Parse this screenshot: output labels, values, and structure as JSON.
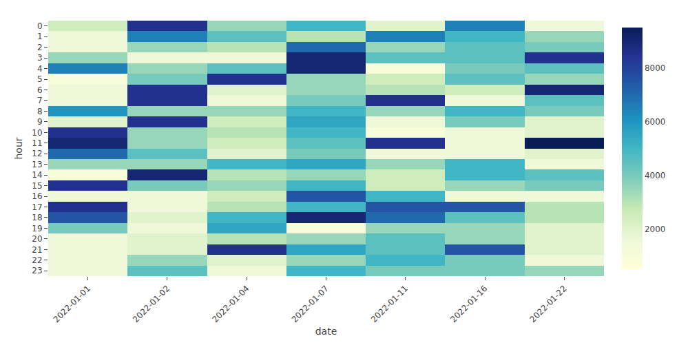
{
  "chart_data": {
    "type": "heatmap",
    "xlabel": "date",
    "ylabel": "hour",
    "x": [
      "2022-01-01",
      "2022-01-02",
      "2022-01-04",
      "2022-01-07",
      "2022-01-11",
      "2022-01-16",
      "2022-01-22"
    ],
    "y": [
      0,
      1,
      2,
      3,
      4,
      5,
      6,
      7,
      8,
      9,
      10,
      11,
      12,
      13,
      14,
      15,
      16,
      17,
      18,
      19,
      20,
      21,
      22,
      23
    ],
    "values": [
      [
        2500,
        8500,
        3500,
        5000,
        2000,
        6500,
        1500
      ],
      [
        1500,
        6500,
        4500,
        3000,
        6500,
        5000,
        3500
      ],
      [
        1500,
        3500,
        3000,
        7000,
        3500,
        4500,
        4000
      ],
      [
        3500,
        1500,
        1500,
        9000,
        4500,
        4500,
        8500
      ],
      [
        6500,
        3500,
        4500,
        9000,
        1000,
        4000,
        4500
      ],
      [
        1000,
        4000,
        8500,
        3500,
        2500,
        4500,
        3500
      ],
      [
        1500,
        8500,
        2000,
        3500,
        3000,
        2500,
        9000
      ],
      [
        1500,
        8500,
        1500,
        4000,
        8500,
        1500,
        4500
      ],
      [
        6000,
        3500,
        3500,
        5000,
        3500,
        5000,
        4000
      ],
      [
        2000,
        8500,
        2500,
        5500,
        1500,
        4000,
        2000
      ],
      [
        8500,
        3500,
        3000,
        5000,
        1000,
        1500,
        2000
      ],
      [
        9000,
        3500,
        2500,
        4500,
        8500,
        1500,
        9500
      ],
      [
        7000,
        4500,
        2000,
        4000,
        1500,
        1500,
        2000
      ],
      [
        3500,
        3500,
        5000,
        5500,
        3500,
        5000,
        1500
      ],
      [
        1000,
        9000,
        3000,
        3500,
        2500,
        5000,
        4500
      ],
      [
        8500,
        4000,
        3500,
        5000,
        2500,
        3500,
        4000
      ],
      [
        1500,
        1500,
        2500,
        7500,
        5000,
        1500,
        1500
      ],
      [
        8500,
        1500,
        3000,
        5000,
        7500,
        7500,
        3000
      ],
      [
        7500,
        2000,
        5000,
        9000,
        7000,
        4500,
        3000
      ],
      [
        4000,
        1500,
        5500,
        1000,
        3500,
        3500,
        2000
      ],
      [
        1500,
        2000,
        3000,
        3500,
        4500,
        3500,
        2000
      ],
      [
        1500,
        2000,
        8500,
        5500,
        4500,
        7500,
        2000
      ],
      [
        1500,
        3500,
        2000,
        3500,
        5000,
        4000,
        1500
      ],
      [
        1500,
        4500,
        1500,
        5000,
        4000,
        4000,
        3500
      ]
    ],
    "colorbar_range": [
      500,
      9500
    ],
    "colorbar_ticks": [
      2000,
      4000,
      6000,
      8000
    ],
    "grid": false
  }
}
